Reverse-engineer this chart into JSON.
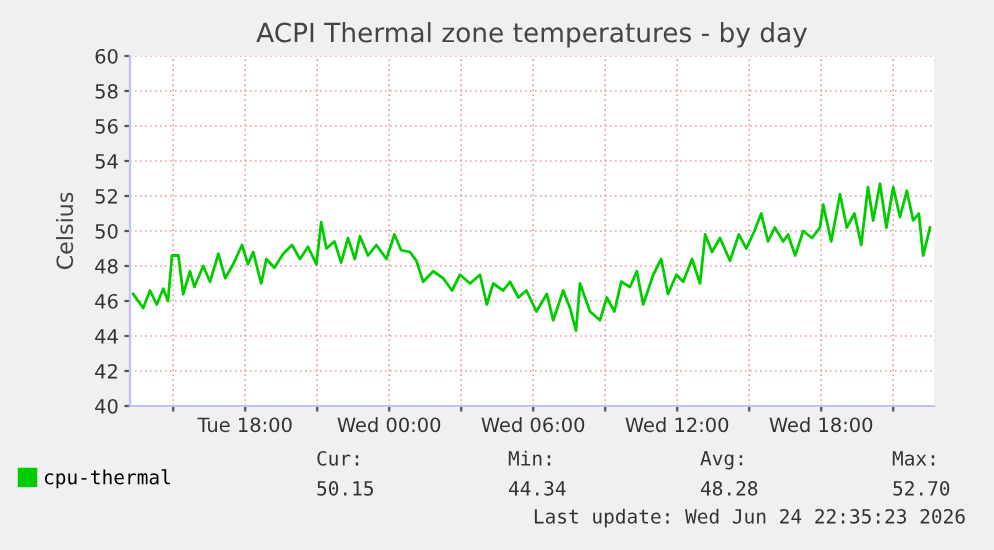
{
  "chart_data": {
    "type": "line",
    "title": "ACPI Thermal zone temperatures - by day",
    "ylabel": "Celsius",
    "xlim": [
      "2026-06-23T13:12",
      "2026-06-24T22:42"
    ],
    "xticks": [
      {
        "value": "2026-06-23T15:00",
        "label": null
      },
      {
        "value": "2026-06-23T18:00",
        "label": "Tue 18:00"
      },
      {
        "value": "2026-06-23T21:00",
        "label": null
      },
      {
        "value": "2026-06-24T00:00",
        "label": "Wed 00:00"
      },
      {
        "value": "2026-06-24T03:00",
        "label": null
      },
      {
        "value": "2026-06-24T06:00",
        "label": "Wed 06:00"
      },
      {
        "value": "2026-06-24T09:00",
        "label": null
      },
      {
        "value": "2026-06-24T12:00",
        "label": "Wed 12:00"
      },
      {
        "value": "2026-06-24T15:00",
        "label": null
      },
      {
        "value": "2026-06-24T18:00",
        "label": "Wed 18:00"
      },
      {
        "value": "2026-06-24T21:00",
        "label": null
      }
    ],
    "ylim": [
      40,
      60
    ],
    "yticks": [
      40,
      42,
      44,
      46,
      48,
      50,
      52,
      54,
      56,
      58,
      60
    ],
    "grid": true,
    "legend": "bottom left",
    "series": [
      {
        "name": "cpu-thermal",
        "color": "#00cc00",
        "x": [
          "2026-06-23T13:20",
          "2026-06-23T13:45",
          "2026-06-23T14:02",
          "2026-06-23T14:19",
          "2026-06-23T14:35",
          "2026-06-23T14:47",
          "2026-06-23T14:57",
          "2026-06-23T15:13",
          "2026-06-23T15:25",
          "2026-06-23T15:42",
          "2026-06-23T15:53",
          "2026-06-23T16:15",
          "2026-06-23T16:32",
          "2026-06-23T16:53",
          "2026-06-23T17:10",
          "2026-06-23T17:30",
          "2026-06-23T17:52",
          "2026-06-23T18:07",
          "2026-06-23T18:20",
          "2026-06-23T18:40",
          "2026-06-23T18:53",
          "2026-06-23T19:13",
          "2026-06-23T19:35",
          "2026-06-23T19:57",
          "2026-06-23T20:17",
          "2026-06-23T20:37",
          "2026-06-23T20:58",
          "2026-06-23T21:10",
          "2026-06-23T21:23",
          "2026-06-23T21:43",
          "2026-06-23T22:00",
          "2026-06-23T22:17",
          "2026-06-23T22:34",
          "2026-06-23T22:47",
          "2026-06-23T23:07",
          "2026-06-23T23:28",
          "2026-06-23T23:53",
          "2026-06-24T00:13",
          "2026-06-24T00:30",
          "2026-06-24T00:52",
          "2026-06-24T01:08",
          "2026-06-24T01:25",
          "2026-06-24T01:50",
          "2026-06-24T02:15",
          "2026-06-24T02:37",
          "2026-06-24T02:57",
          "2026-06-24T03:22",
          "2026-06-24T03:47",
          "2026-06-24T04:04",
          "2026-06-24T04:20",
          "2026-06-24T04:45",
          "2026-06-24T05:02",
          "2026-06-24T05:23",
          "2026-06-24T05:43",
          "2026-06-24T06:08",
          "2026-06-24T06:34",
          "2026-06-24T06:50",
          "2026-06-24T07:15",
          "2026-06-24T07:32",
          "2026-06-24T07:47",
          "2026-06-24T07:57",
          "2026-06-24T08:22",
          "2026-06-24T08:47",
          "2026-06-24T09:04",
          "2026-06-24T09:23",
          "2026-06-24T09:40",
          "2026-06-24T10:02",
          "2026-06-24T10:19",
          "2026-06-24T10:35",
          "2026-06-24T11:00",
          "2026-06-24T11:20",
          "2026-06-24T11:37",
          "2026-06-24T11:58",
          "2026-06-24T12:15",
          "2026-06-24T12:37",
          "2026-06-24T12:57",
          "2026-06-24T13:10",
          "2026-06-24T13:27",
          "2026-06-24T13:47",
          "2026-06-24T14:12",
          "2026-06-24T14:34",
          "2026-06-24T14:53",
          "2026-06-24T15:13",
          "2026-06-24T15:30",
          "2026-06-24T15:47",
          "2026-06-24T16:04",
          "2026-06-24T16:25",
          "2026-06-24T16:37",
          "2026-06-24T16:55",
          "2026-06-24T17:15",
          "2026-06-24T17:37",
          "2026-06-24T17:57",
          "2026-06-24T18:05",
          "2026-06-24T18:25",
          "2026-06-24T18:47",
          "2026-06-24T19:04",
          "2026-06-24T19:23",
          "2026-06-24T19:40",
          "2026-06-24T19:57",
          "2026-06-24T20:10",
          "2026-06-24T20:27",
          "2026-06-24T20:43",
          "2026-06-24T21:00",
          "2026-06-24T21:17",
          "2026-06-24T21:34",
          "2026-06-24T21:50",
          "2026-06-24T22:04",
          "2026-06-24T22:15",
          "2026-06-24T22:32"
        ],
        "values": [
          46.4,
          45.6,
          46.6,
          45.8,
          46.7,
          46.0,
          48.6,
          48.6,
          46.4,
          47.7,
          46.8,
          48.0,
          47.1,
          48.7,
          47.3,
          48.1,
          49.2,
          48.1,
          48.8,
          47.0,
          48.4,
          47.9,
          48.7,
          49.2,
          48.4,
          49.1,
          48.1,
          50.5,
          49.0,
          49.4,
          48.2,
          49.6,
          48.4,
          49.7,
          48.6,
          49.2,
          48.4,
          49.8,
          48.9,
          48.8,
          48.3,
          47.1,
          47.7,
          47.3,
          46.6,
          47.5,
          47.0,
          47.5,
          45.8,
          47.0,
          46.6,
          47.1,
          46.2,
          46.6,
          45.4,
          46.4,
          44.9,
          46.6,
          45.6,
          44.3,
          47.0,
          45.4,
          44.9,
          46.2,
          45.4,
          47.1,
          46.8,
          47.7,
          45.8,
          47.5,
          48.4,
          46.4,
          47.5,
          47.1,
          48.4,
          47.0,
          49.8,
          48.8,
          49.6,
          48.3,
          49.8,
          49.0,
          50.0,
          51.0,
          49.4,
          50.2,
          49.4,
          49.8,
          48.6,
          50.0,
          49.6,
          50.2,
          51.5,
          49.4,
          52.1,
          50.2,
          51.0,
          49.2,
          52.5,
          50.6,
          52.7,
          50.2,
          52.5,
          50.8,
          52.3,
          50.6,
          51.0,
          48.6,
          50.2
        ]
      }
    ],
    "annotations": [
      "Cur:",
      "Min:",
      "Avg:",
      "Max:",
      "50.15",
      "44.34",
      "48.28",
      "52.70",
      "Last update: Wed Jun 24 22:35:23 2026"
    ]
  }
}
